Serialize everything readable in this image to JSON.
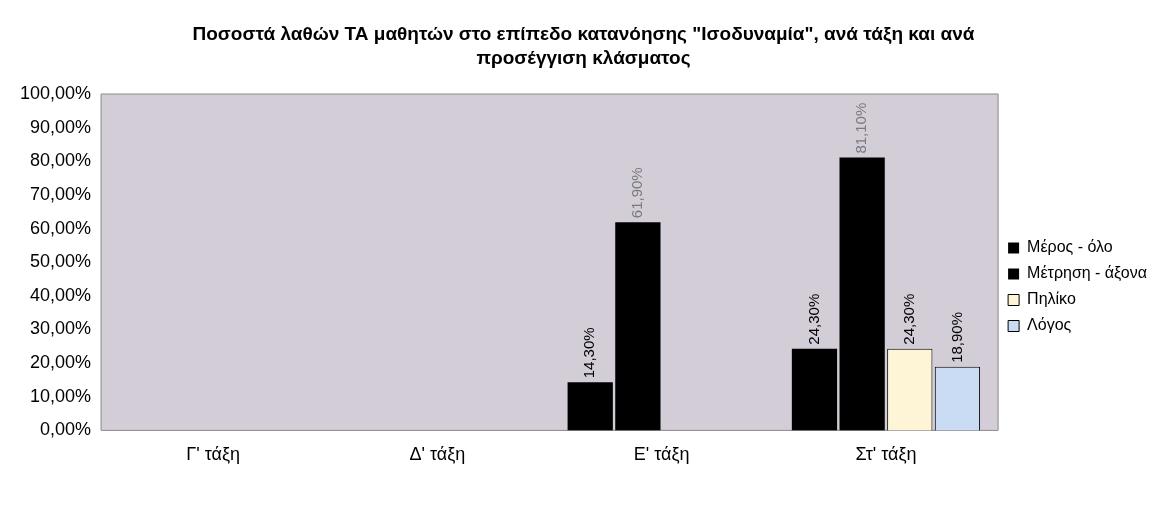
{
  "chart_data": {
    "type": "bar",
    "title": "Ποσοστά λαθών ΤΑ μαθητών στο επίπεδο κατανόησης \"Ισοδυναμία\", ανά τάξη και ανά προσέγγιση κλάσματος",
    "categories": [
      "Γ' τάξη",
      "Δ' τάξη",
      "Ε' τάξη",
      "Στ' τάξη"
    ],
    "series": [
      {
        "name": "Μέρος - όλο",
        "color": "#000000",
        "values": [
          null,
          null,
          14.3,
          24.3
        ],
        "value_labels": [
          null,
          null,
          "14,30%",
          "24,30%"
        ]
      },
      {
        "name": "Μέτρηση - άξονα",
        "color": "#000000",
        "values": [
          null,
          null,
          61.9,
          81.1
        ],
        "value_labels": [
          null,
          null,
          "61,90%",
          "81,10%"
        ]
      },
      {
        "name": "Πηλίκο",
        "color": "#fdf5d6",
        "values": [
          null,
          null,
          null,
          24.3
        ],
        "value_labels": [
          null,
          null,
          null,
          "24,30%"
        ]
      },
      {
        "name": "Λόγος",
        "color": "#cadcf4",
        "values": [
          null,
          null,
          null,
          18.9
        ],
        "value_labels": [
          null,
          null,
          null,
          "18,90%"
        ]
      }
    ],
    "ylim": [
      0,
      100
    ],
    "yticks": [
      {
        "value": 0,
        "label": "0,00%"
      },
      {
        "value": 10,
        "label": "10,00%"
      },
      {
        "value": 20,
        "label": "20,00%"
      },
      {
        "value": 30,
        "label": "30,00%"
      },
      {
        "value": 40,
        "label": "40,00%"
      },
      {
        "value": 50,
        "label": "50,00%"
      },
      {
        "value": 60,
        "label": "60,00%"
      },
      {
        "value": 70,
        "label": "70,00%"
      },
      {
        "value": 80,
        "label": "80,00%"
      },
      {
        "value": 90,
        "label": "90,00%"
      },
      {
        "value": 100,
        "label": "100,00%"
      }
    ],
    "grid": false,
    "legend": "right"
  }
}
